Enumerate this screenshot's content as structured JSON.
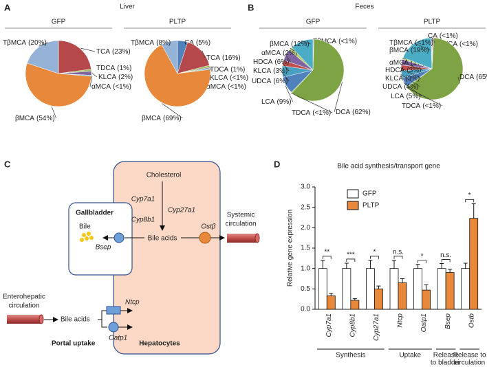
{
  "sections": [
    {
      "panel": "A",
      "title": "Liver"
    },
    {
      "panel": "B",
      "title": "Feces"
    }
  ],
  "chart_data": [
    {
      "type": "pie",
      "title": "GFP",
      "categories": [
        "TCA",
        "TDCA",
        "KLCA",
        "αMCA",
        "βMCA",
        "TβMCA"
      ],
      "values": [
        23,
        1,
        2,
        0.5,
        54,
        20
      ],
      "value_labels": [
        "(23%)",
        "(1%)",
        "(2%)",
        "(<1%)",
        "(54%)",
        "(20%)"
      ],
      "colors": [
        "#b5484a",
        "#9bbb59",
        "#8064a2",
        "#4bacc6",
        "#e8883a",
        "#95b3d7"
      ]
    },
    {
      "type": "pie",
      "title": "PLTP",
      "categories": [
        "CA",
        "TCA",
        "TDCA",
        "KLCA",
        "αMCA",
        "βMCA",
        "TβMCA"
      ],
      "values": [
        5,
        16,
        1,
        0.5,
        0.5,
        69,
        8
      ],
      "value_labels": [
        "(5%)",
        "(16%)",
        "(1%)",
        "(<1%)",
        "(<1%)",
        "(69%)",
        "(8%)"
      ],
      "colors": [
        "#4f81bd",
        "#b5484a",
        "#9bbb59",
        "#8064a2",
        "#4bacc6",
        "#e8883a",
        "#95b3d7"
      ]
    },
    {
      "type": "pie",
      "title": "GFP",
      "categories": [
        "TβMCA",
        "DCA",
        "TDCA",
        "LCA",
        "UDCA",
        "KLCA",
        "HDCA",
        "αMCA",
        "βMCA"
      ],
      "values": [
        0.5,
        62,
        0.5,
        9,
        6,
        3,
        6,
        2,
        12
      ],
      "value_labels": [
        "(<1%)",
        "(62%)",
        "(<1%)",
        "(9%)",
        "(6%)",
        "(3%)",
        "(6%)",
        "(2%)",
        "(12%)"
      ],
      "colors": [
        "#95b3d7",
        "#7ea345",
        "#9bbb59",
        "#4f81bd",
        "#4aa0c0",
        "#c0504d",
        "#8064a2",
        "#b7cf7a",
        "#4bacc6"
      ]
    },
    {
      "type": "pie",
      "title": "PLTP",
      "categories": [
        "CA",
        "TCA",
        "DCA",
        "TDCA",
        "LCA",
        "UDCA",
        "KLCA",
        "HDCA",
        "αMCA",
        "βMCA",
        "TβMCA"
      ],
      "values": [
        0.5,
        0.5,
        65,
        0.5,
        5,
        4,
        3,
        3,
        1,
        19,
        0.5
      ],
      "value_labels": [
        "(<1%)",
        "(<1%)",
        "(65%)",
        "(<1%)",
        "(5%)",
        "(4%)",
        "(3%)",
        "(3%)",
        "(1%)",
        "(19%)",
        "(<1%)"
      ],
      "colors": [
        "#4f81bd",
        "#c0504d",
        "#7ea345",
        "#9bbb59",
        "#4f81bd",
        "#4aa0c0",
        "#c0504d",
        "#8064a2",
        "#b7cf7a",
        "#4bacc6",
        "#95b3d7"
      ]
    },
    {
      "type": "bar",
      "panel": "D",
      "title": "Bile acid synthesis/transport gene",
      "y_label": "Relative gene expression",
      "categories": [
        "Cyp7a1",
        "Cyp8b1",
        "Cyp27a1",
        "Ntcp",
        "Oatp1",
        "Bsep",
        "Ostb"
      ],
      "series": [
        {
          "name": "GFP",
          "color": "#ffffff",
          "values": [
            1.0,
            1.0,
            1.0,
            1.0,
            1.0,
            1.0,
            1.0
          ],
          "errors": [
            0.2,
            0.13,
            0.2,
            0.2,
            0.1,
            0.12,
            0.13
          ]
        },
        {
          "name": "PLTP",
          "color": "#e8883a",
          "values": [
            0.33,
            0.22,
            0.5,
            0.65,
            0.47,
            0.9,
            2.23
          ],
          "errors": [
            0.06,
            0.04,
            0.07,
            0.1,
            0.13,
            0.08,
            0.36
          ]
        }
      ],
      "significance": [
        "**",
        "***",
        "*",
        "n.s.",
        "*",
        "n.s.",
        "*"
      ],
      "groups": [
        [
          "Synthesis"
        ],
        [
          "Uptake"
        ],
        [
          "Release",
          "to bladder"
        ],
        [
          "Release to",
          "circulation"
        ]
      ],
      "ylim": [
        0,
        3
      ],
      "yticks": [
        {
          "value": 0,
          "label": "0.0"
        },
        0.5,
        {
          "value": 1,
          "label": "1.0"
        },
        1.5,
        {
          "value": 2,
          "label": "2.0"
        },
        2.5,
        {
          "value": 3,
          "label": "3.0"
        }
      ]
    }
  ],
  "diagram": {
    "panel": "C",
    "cholesterol": "Cholesterol",
    "enzymes": [
      "Cyp7a1",
      "Cyp27a1",
      "Cyp8b1"
    ],
    "gallbladder": "Gallbladder",
    "bile": "Bile",
    "bsep": "Bsep",
    "bile_acids": "Bile acids",
    "ost": "Ostβ",
    "systemic": [
      "Systemic",
      "circulation"
    ],
    "enterohepatic": [
      "Enterohepatic",
      "circulation"
    ],
    "portal_bile_acids": "Bile acids",
    "ntcp": "Ntcp",
    "oatp1": "Oatp1",
    "portal_uptake": "Portal uptake",
    "hepatocytes": "Hepatocytes"
  }
}
